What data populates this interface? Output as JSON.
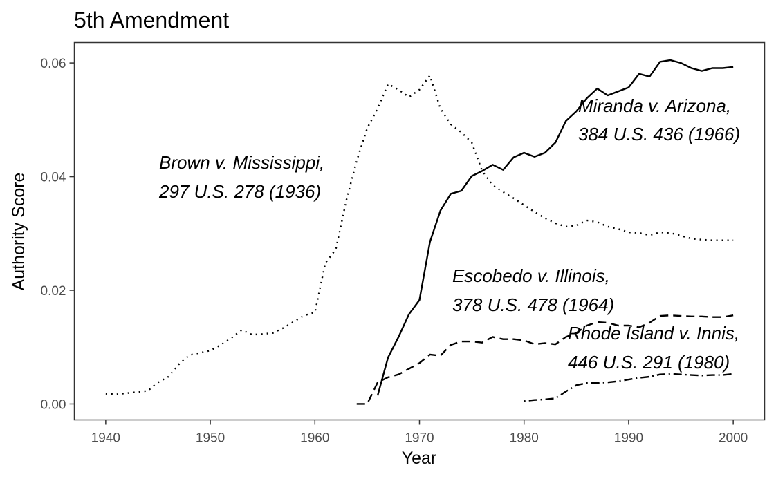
{
  "chart_data": {
    "type": "line",
    "title": "5th Amendment",
    "xlabel": "Year",
    "ylabel": "Authority Score",
    "xlim": [
      1937,
      2003
    ],
    "ylim": [
      -0.0028,
      0.0636
    ],
    "x_ticks": [
      "1940",
      "1950",
      "1960",
      "1970",
      "1980",
      "1990",
      "2000"
    ],
    "y_ticks": [
      "0.00",
      "0.02",
      "0.04",
      "0.06"
    ],
    "grid": false,
    "legend": "none",
    "series": [
      {
        "line_style": "dotted",
        "x": [
          1940,
          1941,
          1942,
          1943,
          1944,
          1945,
          1946,
          1947,
          1948,
          1949,
          1950,
          1951,
          1952,
          1953,
          1954,
          1955,
          1956,
          1957,
          1958,
          1959,
          1960,
          1961,
          1962,
          1963,
          1964,
          1965,
          1966,
          1967,
          1968,
          1969,
          1970,
          1971,
          1972,
          1973,
          1974,
          1975,
          1976,
          1977,
          1978,
          1979,
          1980,
          1981,
          1982,
          1983,
          1984,
          1985,
          1986,
          1987,
          1988,
          1989,
          1990,
          1991,
          1992,
          1993,
          1994,
          1995,
          1996,
          1997,
          1998,
          1999,
          2000
        ],
        "y": [
          0.0018,
          0.0017,
          0.0019,
          0.0021,
          0.0023,
          0.0038,
          0.0048,
          0.007,
          0.0086,
          0.009,
          0.0094,
          0.0104,
          0.0116,
          0.013,
          0.0122,
          0.0123,
          0.0125,
          0.0134,
          0.0145,
          0.0156,
          0.0161,
          0.0248,
          0.0272,
          0.0358,
          0.0428,
          0.0485,
          0.052,
          0.0563,
          0.0553,
          0.054,
          0.0553,
          0.0578,
          0.052,
          0.0492,
          0.0478,
          0.046,
          0.041,
          0.0385,
          0.0373,
          0.0362,
          0.035,
          0.0338,
          0.0327,
          0.0318,
          0.0312,
          0.0314,
          0.0323,
          0.032,
          0.0312,
          0.0308,
          0.0302,
          0.0301,
          0.0297,
          0.0302,
          0.0301,
          0.0296,
          0.0291,
          0.0289,
          0.0288,
          0.0288,
          0.0288
        ]
      },
      {
        "line_style": "solid",
        "x": [
          1966,
          1967,
          1968,
          1969,
          1970,
          1971,
          1972,
          1973,
          1974,
          1975,
          1976,
          1977,
          1978,
          1979,
          1980,
          1981,
          1982,
          1983,
          1984,
          1985,
          1986,
          1987,
          1988,
          1989,
          1990,
          1991,
          1992,
          1993,
          1994,
          1995,
          1996,
          1997,
          1998,
          1999,
          2000
        ],
        "y": [
          0.0015,
          0.0082,
          0.0118,
          0.0158,
          0.0183,
          0.0285,
          0.034,
          0.037,
          0.0375,
          0.0401,
          0.041,
          0.0421,
          0.0412,
          0.0434,
          0.0442,
          0.0435,
          0.0442,
          0.046,
          0.0498,
          0.0515,
          0.0538,
          0.0555,
          0.0543,
          0.055,
          0.0557,
          0.0581,
          0.0576,
          0.0602,
          0.0605,
          0.06,
          0.0591,
          0.0586,
          0.0591,
          0.0591,
          0.0593
        ]
      },
      {
        "line_style": "dashed",
        "x": [
          1964,
          1965,
          1966,
          1967,
          1968,
          1969,
          1970,
          1971,
          1972,
          1973,
          1974,
          1975,
          1976,
          1977,
          1978,
          1979,
          1980,
          1981,
          1982,
          1983,
          1984,
          1985,
          1986,
          1987,
          1988,
          1989,
          1990,
          1991,
          1992,
          1993,
          1994,
          1995,
          1996,
          1997,
          1998,
          1999,
          2000
        ],
        "y": [
          0.0,
          0.0,
          0.0038,
          0.0047,
          0.0052,
          0.0062,
          0.0072,
          0.0087,
          0.0085,
          0.0104,
          0.011,
          0.011,
          0.0108,
          0.0118,
          0.0114,
          0.0114,
          0.0112,
          0.0105,
          0.0107,
          0.0105,
          0.0118,
          0.0125,
          0.0138,
          0.0144,
          0.0143,
          0.0138,
          0.0138,
          0.0135,
          0.0143,
          0.0155,
          0.0156,
          0.0155,
          0.0154,
          0.0154,
          0.0153,
          0.0153,
          0.0156
        ]
      },
      {
        "line_style": "dotdash",
        "x": [
          1980,
          1981,
          1982,
          1983,
          1984,
          1985,
          1986,
          1987,
          1988,
          1989,
          1990,
          1991,
          1992,
          1993,
          1994,
          1995,
          1996,
          1997,
          1998,
          1999,
          2000
        ],
        "y": [
          0.0005,
          0.0007,
          0.0008,
          0.001,
          0.0022,
          0.0033,
          0.0037,
          0.0037,
          0.0038,
          0.004,
          0.0043,
          0.0046,
          0.0048,
          0.0052,
          0.0053,
          0.0052,
          0.0051,
          0.005,
          0.0051,
          0.0051,
          0.0053
        ]
      }
    ],
    "annotations": [
      {
        "line1": "Brown v. Mississippi,",
        "line2": "297 U.S. 278 (1936)"
      },
      {
        "line1": "Miranda v. Arizona,",
        "line2": "384 U.S. 436 (1966)"
      },
      {
        "line1": "Escobedo v. Illinois,",
        "line2": "378 U.S. 478 (1964)"
      },
      {
        "line1": "Rhode Island v. Innis,",
        "line2": "446 U.S. 291 (1980)"
      }
    ]
  }
}
